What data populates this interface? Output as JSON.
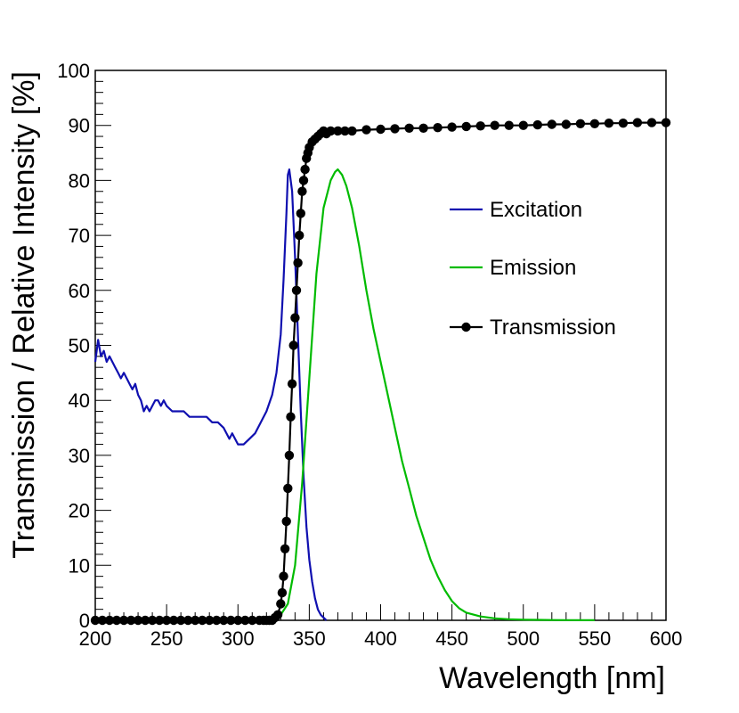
{
  "chart_data": {
    "type": "line",
    "title": "",
    "xlabel": "Wavelength [nm]",
    "ylabel": "Transmission / Relative Intensity [%]",
    "xlim": [
      200,
      600
    ],
    "ylim": [
      0,
      100
    ],
    "xticks": [
      200,
      250,
      300,
      350,
      400,
      450,
      500,
      550,
      600
    ],
    "xtick_labels": [
      "200",
      "250",
      "300",
      "350",
      "400",
      "450",
      "500",
      "550",
      "600"
    ],
    "yticks": [
      0,
      10,
      20,
      30,
      40,
      50,
      60,
      70,
      80,
      90,
      100
    ],
    "ytick_labels": [
      "0",
      "10",
      "20",
      "30",
      "40",
      "50",
      "60",
      "70",
      "80",
      "90",
      "100"
    ],
    "grid": false,
    "legend_position": "right",
    "series": [
      {
        "name": "Excitation",
        "color": "#1010b0",
        "style": "line",
        "x": [
          200,
          202,
          204,
          206,
          208,
          210,
          212,
          214,
          216,
          218,
          220,
          222,
          224,
          226,
          228,
          230,
          232,
          234,
          236,
          238,
          240,
          242,
          244,
          246,
          248,
          250,
          254,
          258,
          262,
          266,
          270,
          274,
          278,
          282,
          286,
          290,
          292,
          294,
          296,
          298,
          300,
          304,
          308,
          312,
          316,
          320,
          324,
          327,
          330,
          332,
          334,
          335,
          336,
          338,
          340,
          342,
          344,
          346,
          348,
          350,
          352,
          354,
          356,
          358,
          360,
          362
        ],
        "values": [
          47,
          51,
          48,
          49,
          47,
          48,
          47,
          46,
          45,
          44,
          45,
          44,
          43,
          42,
          43,
          41,
          40,
          38,
          39,
          38,
          39,
          40,
          40,
          39,
          40,
          39,
          38,
          38,
          38,
          37,
          37,
          37,
          37,
          36,
          36,
          35,
          34,
          33,
          34,
          33,
          32,
          32,
          33,
          34,
          36,
          38,
          41,
          45,
          52,
          62,
          74,
          81,
          82,
          78,
          66,
          52,
          38,
          26,
          17,
          11,
          7,
          4,
          2,
          1,
          0.5,
          0
        ]
      },
      {
        "name": "Emission",
        "color": "#00bb00",
        "style": "line",
        "x": [
          325,
          330,
          335,
          340,
          345,
          350,
          355,
          360,
          365,
          368,
          370,
          373,
          376,
          380,
          385,
          390,
          395,
          400,
          405,
          410,
          415,
          420,
          425,
          430,
          435,
          440,
          445,
          450,
          455,
          460,
          470,
          480,
          490,
          500,
          510,
          520,
          530,
          540,
          550
        ],
        "values": [
          0,
          1,
          3,
          10,
          25,
          44,
          63,
          75,
          80,
          81.5,
          82,
          81,
          79,
          75,
          68,
          60,
          53,
          47,
          41,
          35,
          29,
          24,
          19,
          15,
          11,
          8,
          5.5,
          3.5,
          2.2,
          1.4,
          0.7,
          0.35,
          0.2,
          0.12,
          0.08,
          0.05,
          0.03,
          0.02,
          0.01
        ]
      },
      {
        "name": "Transmission",
        "color": "#000000",
        "style": "line+markers",
        "x": [
          200,
          205,
          210,
          215,
          220,
          225,
          230,
          235,
          240,
          245,
          250,
          255,
          260,
          265,
          270,
          275,
          280,
          285,
          290,
          295,
          300,
          305,
          310,
          315,
          318,
          320,
          322,
          324,
          326,
          328,
          330,
          331,
          332,
          333,
          334,
          335,
          336,
          337,
          338,
          339,
          340,
          341,
          342,
          343,
          344,
          345,
          346,
          347,
          348,
          349,
          350,
          352,
          354,
          356,
          358,
          360,
          362,
          365,
          370,
          375,
          380,
          390,
          400,
          410,
          420,
          430,
          440,
          450,
          460,
          470,
          480,
          490,
          500,
          510,
          520,
          530,
          540,
          550,
          560,
          570,
          580,
          590,
          600
        ],
        "values": [
          0,
          0,
          0,
          0,
          0,
          0,
          0,
          0,
          0,
          0,
          0,
          0,
          0,
          0,
          0,
          0,
          0,
          0,
          0,
          0,
          0,
          0,
          0,
          0,
          0,
          0,
          0,
          0,
          0.5,
          1,
          3,
          5,
          8,
          13,
          18,
          24,
          30,
          37,
          43,
          50,
          55,
          60,
          65,
          70,
          74,
          78,
          80,
          82,
          84,
          85,
          86,
          87,
          87.5,
          88,
          88.5,
          89,
          88.5,
          89,
          89,
          89,
          89,
          89.2,
          89.3,
          89.4,
          89.5,
          89.5,
          89.6,
          89.7,
          89.8,
          89.9,
          90,
          90,
          90,
          90.1,
          90.2,
          90.2,
          90.3,
          90.3,
          90.4,
          90.4,
          90.5,
          90.5,
          90.5
        ]
      }
    ]
  }
}
